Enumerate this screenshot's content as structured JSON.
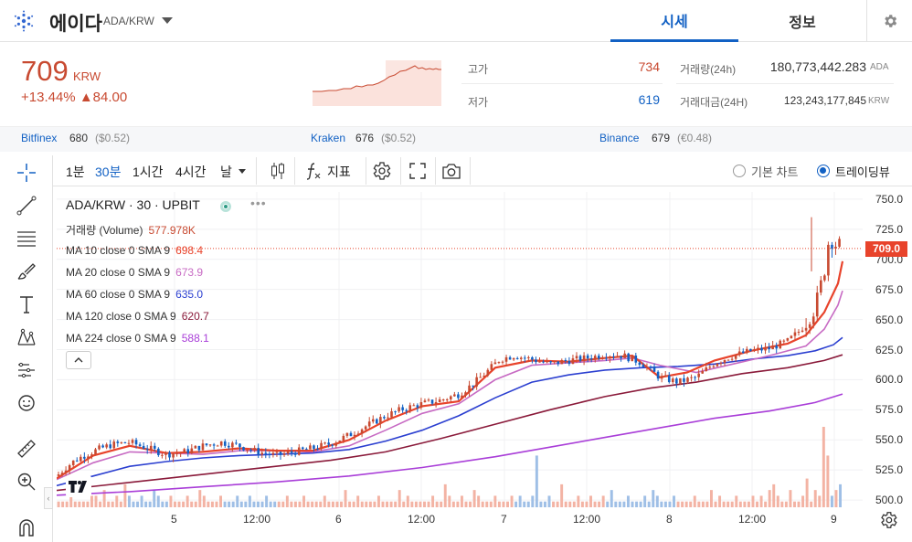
{
  "header": {
    "coin_name": "에이다",
    "pair": "ADA/KRW",
    "tabs": [
      {
        "label": "시세"
      },
      {
        "label": "정보"
      }
    ]
  },
  "price": {
    "value": "709",
    "unit": "KRW",
    "change_pct": "+13.44%",
    "change_amount": "▲84.00"
  },
  "stats": {
    "high_label": "고가",
    "high_value": "734",
    "low_label": "저가",
    "low_value": "619",
    "volume_label": "거래량(24h)",
    "volume_value": "180,773,442.283",
    "volume_unit": "ADA",
    "amount_label": "거래대금(24H)",
    "amount_value": "123,243,177,845",
    "amount_unit": "KRW"
  },
  "exchanges": [
    {
      "name": "Bitfinex",
      "price": "680",
      "usd": "($0.52)"
    },
    {
      "name": "Kraken",
      "price": "676",
      "usd": "($0.52)"
    },
    {
      "name": "Binance",
      "price": "679",
      "usd": "(€0.48)"
    }
  ],
  "toolbar": {
    "intervals": [
      "1분",
      "30분",
      "1시간",
      "4시간",
      "날"
    ],
    "indicator_label": "지표",
    "chart_modes": [
      "기본 차트",
      "트레이딩뷰"
    ]
  },
  "chart_legend": {
    "title": "ADA/KRW · 30 · UPBIT",
    "volume_label": "거래량 (Volume)",
    "volume_value": "577.978K",
    "ma": [
      {
        "label": "MA 10 close 0 SMA 9",
        "value": "698.4",
        "color": "#e8432b"
      },
      {
        "label": "MA 20 close 0 SMA 9",
        "value": "673.9",
        "color": "#c76ac3"
      },
      {
        "label": "MA 60 close 0 SMA 9",
        "value": "635.0",
        "color": "#2b3fd0"
      },
      {
        "label": "MA 120 close 0 SMA 9",
        "value": "620.7",
        "color": "#8a1a3a"
      },
      {
        "label": "MA 224 close 0 SMA 9",
        "value": "588.1",
        "color": "#a93ed8"
      }
    ]
  },
  "chart_data": {
    "type": "candlestick",
    "y_ticks": [
      "750.0",
      "725.0",
      "700.0",
      "675.0",
      "650.0",
      "625.0",
      "600.0",
      "575.0",
      "550.0",
      "525.0",
      "500.0"
    ],
    "x_ticks": [
      "5",
      "12:00",
      "6",
      "12:00",
      "7",
      "12:00",
      "8",
      "12:00",
      "9"
    ],
    "ylim": [
      494,
      756
    ],
    "current_price": "709.0",
    "colors": {
      "up": "#c84a31",
      "down": "#1261c4",
      "volume_up": "#f3b3a4",
      "volume_down": "#9fbfe6"
    },
    "close_path": [
      [
        0,
        520
      ],
      [
        10,
        527
      ],
      [
        20,
        533
      ],
      [
        30,
        537
      ],
      [
        45,
        542
      ],
      [
        60,
        546
      ],
      [
        80,
        548
      ],
      [
        100,
        543
      ],
      [
        120,
        538
      ],
      [
        140,
        540
      ],
      [
        160,
        545
      ],
      [
        180,
        548
      ],
      [
        200,
        545
      ],
      [
        220,
        540
      ],
      [
        240,
        537
      ],
      [
        260,
        540
      ],
      [
        280,
        543
      ],
      [
        300,
        547
      ],
      [
        320,
        554
      ],
      [
        340,
        562
      ],
      [
        360,
        570
      ],
      [
        380,
        576
      ],
      [
        400,
        580
      ],
      [
        420,
        583
      ],
      [
        440,
        588
      ],
      [
        455,
        596
      ],
      [
        470,
        606
      ],
      [
        485,
        617
      ],
      [
        500,
        620
      ],
      [
        520,
        617
      ],
      [
        540,
        613
      ],
      [
        560,
        616
      ],
      [
        580,
        618
      ],
      [
        600,
        621
      ],
      [
        620,
        620
      ],
      [
        640,
        614
      ],
      [
        660,
        602
      ],
      [
        680,
        598
      ],
      [
        700,
        602
      ],
      [
        720,
        614
      ],
      [
        740,
        620
      ],
      [
        760,
        624
      ],
      [
        780,
        626
      ],
      [
        800,
        632
      ],
      [
        815,
        642
      ],
      [
        830,
        660
      ],
      [
        840,
        690
      ],
      [
        846,
        722
      ],
      [
        850,
        712
      ],
      [
        855,
        713
      ],
      [
        860,
        709
      ]
    ],
    "ma10": [
      [
        0,
        518
      ],
      [
        40,
        537
      ],
      [
        80,
        545
      ],
      [
        120,
        539
      ],
      [
        160,
        540
      ],
      [
        200,
        543
      ],
      [
        240,
        541
      ],
      [
        280,
        541
      ],
      [
        320,
        550
      ],
      [
        360,
        566
      ],
      [
        400,
        578
      ],
      [
        440,
        582
      ],
      [
        480,
        610
      ],
      [
        520,
        616
      ],
      [
        560,
        615
      ],
      [
        600,
        618
      ],
      [
        630,
        620
      ],
      [
        660,
        602
      ],
      [
        690,
        606
      ],
      [
        720,
        616
      ],
      [
        760,
        624
      ],
      [
        800,
        630
      ],
      [
        820,
        637
      ],
      [
        840,
        656
      ],
      [
        855,
        680
      ],
      [
        860,
        698.4
      ]
    ],
    "ma20": [
      [
        0,
        517
      ],
      [
        40,
        531
      ],
      [
        80,
        540
      ],
      [
        120,
        539
      ],
      [
        160,
        538
      ],
      [
        200,
        541
      ],
      [
        240,
        541
      ],
      [
        280,
        540
      ],
      [
        320,
        545
      ],
      [
        360,
        558
      ],
      [
        400,
        572
      ],
      [
        440,
        580
      ],
      [
        480,
        600
      ],
      [
        520,
        612
      ],
      [
        560,
        614
      ],
      [
        600,
        616
      ],
      [
        630,
        618
      ],
      [
        660,
        612
      ],
      [
        700,
        606
      ],
      [
        740,
        613
      ],
      [
        780,
        620
      ],
      [
        820,
        628
      ],
      [
        840,
        642
      ],
      [
        855,
        662
      ],
      [
        860,
        673.9
      ]
    ],
    "ma60": [
      [
        0,
        512
      ],
      [
        40,
        520
      ],
      [
        80,
        528
      ],
      [
        120,
        532
      ],
      [
        160,
        535
      ],
      [
        200,
        537
      ],
      [
        240,
        538
      ],
      [
        280,
        539
      ],
      [
        320,
        542
      ],
      [
        360,
        549
      ],
      [
        400,
        558
      ],
      [
        440,
        570
      ],
      [
        480,
        585
      ],
      [
        520,
        598
      ],
      [
        560,
        604
      ],
      [
        600,
        608
      ],
      [
        640,
        610
      ],
      [
        680,
        611
      ],
      [
        720,
        613
      ],
      [
        760,
        617
      ],
      [
        800,
        620
      ],
      [
        830,
        624
      ],
      [
        850,
        629
      ],
      [
        860,
        635
      ]
    ],
    "ma120": [
      [
        0,
        508
      ],
      [
        60,
        513
      ],
      [
        120,
        518
      ],
      [
        180,
        523
      ],
      [
        240,
        528
      ],
      [
        300,
        533
      ],
      [
        360,
        540
      ],
      [
        420,
        551
      ],
      [
        480,
        563
      ],
      [
        540,
        575
      ],
      [
        600,
        586
      ],
      [
        650,
        593
      ],
      [
        700,
        598
      ],
      [
        750,
        605
      ],
      [
        800,
        610
      ],
      [
        840,
        616
      ],
      [
        860,
        620.7
      ]
    ],
    "ma224": [
      [
        0,
        504
      ],
      [
        80,
        507
      ],
      [
        160,
        511
      ],
      [
        240,
        515
      ],
      [
        320,
        520
      ],
      [
        400,
        527
      ],
      [
        480,
        536
      ],
      [
        540,
        544
      ],
      [
        600,
        552
      ],
      [
        660,
        560
      ],
      [
        720,
        568
      ],
      [
        780,
        574
      ],
      [
        830,
        581
      ],
      [
        860,
        588.1
      ]
    ],
    "volume": [
      1,
      1,
      1,
      2,
      1,
      1,
      1,
      1,
      2,
      2,
      1,
      3,
      1,
      1,
      2,
      1,
      4,
      2,
      1,
      1,
      2,
      1,
      1,
      3,
      2,
      1,
      1,
      2,
      1,
      1,
      1,
      2,
      1,
      1,
      3,
      2,
      1,
      1,
      1,
      2,
      1,
      1,
      1,
      2,
      1,
      1,
      2,
      1,
      1,
      1,
      2,
      1,
      1,
      1,
      1,
      2,
      1,
      1,
      1,
      2,
      1,
      1,
      1,
      1,
      2,
      1,
      1,
      1,
      1,
      3,
      1,
      1,
      2,
      1,
      1,
      1,
      1,
      2,
      1,
      1,
      1,
      1,
      3,
      1,
      2,
      1,
      1,
      1,
      1,
      1,
      2,
      1,
      1,
      4,
      2,
      1,
      1,
      2,
      1,
      1,
      3,
      2,
      1,
      1,
      1,
      2,
      1,
      1,
      1,
      2,
      1,
      2,
      1,
      1,
      2,
      9,
      1,
      1,
      2,
      1,
      1,
      4,
      1,
      1,
      1,
      2,
      1,
      1,
      2,
      1,
      1,
      2,
      1,
      3,
      1,
      1,
      1,
      2,
      1,
      1,
      1,
      2,
      1,
      3,
      2,
      1,
      1,
      1,
      2,
      1,
      1,
      1,
      1,
      2,
      1,
      1,
      1,
      3,
      1,
      2,
      1,
      1,
      1,
      2,
      1,
      1,
      1,
      2,
      1,
      2,
      1,
      3,
      4,
      2,
      1,
      1,
      3,
      1,
      1,
      2,
      5,
      1,
      3,
      2,
      14,
      9,
      2,
      3,
      4
    ]
  }
}
